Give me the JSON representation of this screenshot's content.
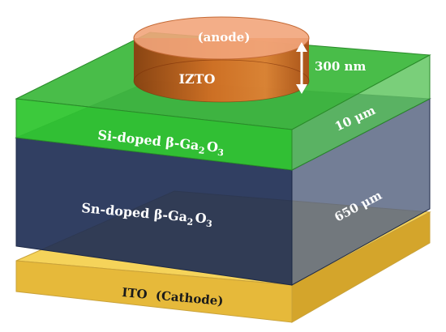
{
  "labels": {
    "anode": "(anode)",
    "contact": "IZTO",
    "contact_thickness": "300 nm",
    "epi_layer_prefix": "Si-doped β-Ga",
    "epi_layer_sub1": "2",
    "epi_layer_mid": "O",
    "epi_layer_sub2": "3",
    "epi_thickness": "10 μm",
    "substrate_prefix": "Sn-doped β-Ga",
    "substrate_sub1": "2",
    "substrate_mid": "O",
    "substrate_sub2": "3",
    "substrate_thickness": "650 μm",
    "cathode": "ITO  (Cathode)"
  },
  "colors": {
    "cathode_top": "#F5D35A",
    "cathode_front": "#E6B93A",
    "cathode_side": "#D4A52B",
    "substrate_top": "#2C3C63",
    "substrate_front": "#1F2F55",
    "substrate_side": "#5A6784",
    "epi_top": "#3FB93F",
    "epi_front": "#32C632",
    "epi_side": "#63C763",
    "anode_top": "#F2A57B",
    "anode_body": "#D5621E"
  }
}
